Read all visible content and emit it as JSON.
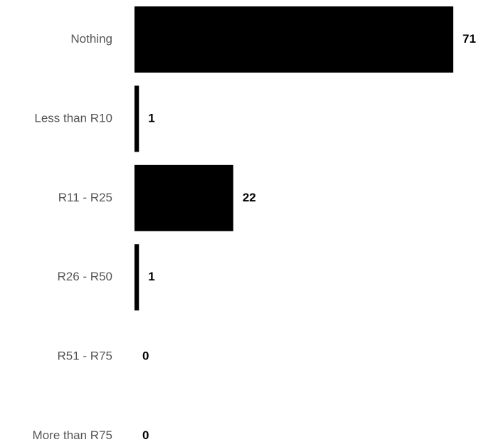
{
  "chart_data": {
    "type": "bar",
    "orientation": "horizontal",
    "categories": [
      "Nothing",
      "Less than R10",
      "R11 - R25",
      "R26 - R50",
      "R51 - R75",
      "More than R75"
    ],
    "values": [
      71,
      1,
      22,
      1,
      0,
      0
    ],
    "value_labels": [
      "71",
      "1",
      "22",
      "1",
      "0",
      "0"
    ],
    "xlim": [
      0,
      71
    ],
    "grid": false,
    "legend": "none",
    "bar_color": "#000000",
    "category_label_color": "#555555",
    "value_label_color": "#000000"
  }
}
